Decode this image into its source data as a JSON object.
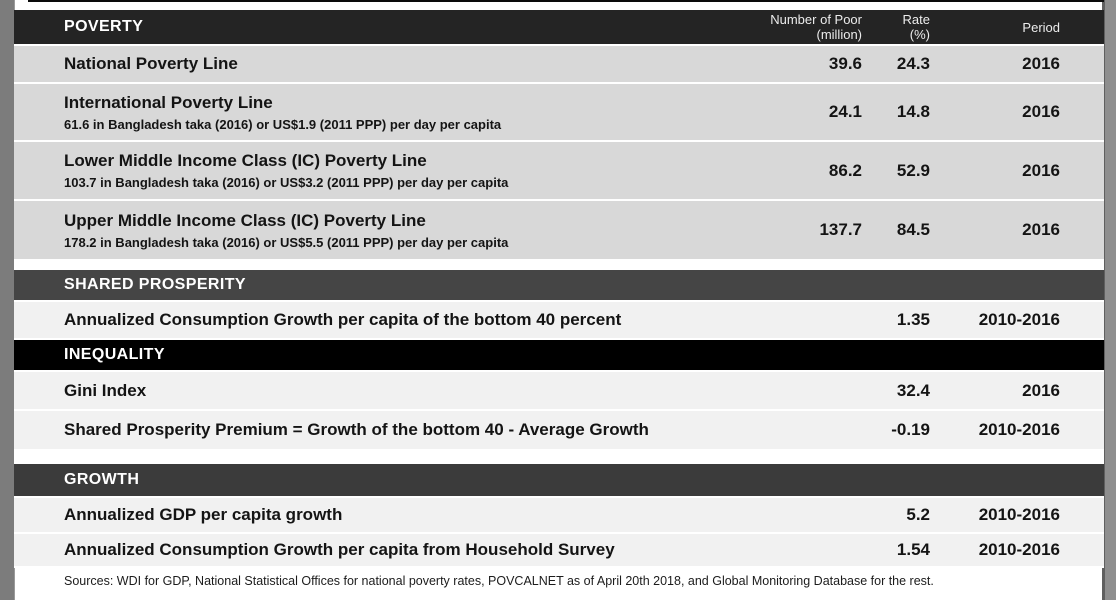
{
  "table": {
    "columns": {
      "number_line1": "Number of Poor",
      "number_line2": "(million)",
      "rate_line1": "Rate",
      "rate_line2": "(%)",
      "period": "Period"
    },
    "sections": [
      {
        "title": "POVERTY",
        "rows": [
          {
            "label": "National Poverty Line",
            "sub": "",
            "number": "39.6",
            "rate": "24.3",
            "period": "2016"
          },
          {
            "label": "International Poverty Line",
            "sub": "61.6 in Bangladesh taka (2016) or US$1.9 (2011 PPP) per day per capita",
            "number": "24.1",
            "rate": "14.8",
            "period": "2016"
          },
          {
            "label": "Lower Middle Income Class (IC) Poverty Line",
            "sub": "103.7 in Bangladesh taka (2016) or US$3.2 (2011 PPP) per day per capita",
            "number": "86.2",
            "rate": "52.9",
            "period": "2016"
          },
          {
            "label": "Upper Middle Income Class (IC) Poverty Line",
            "sub": "178.2 in Bangladesh taka (2016) or US$5.5 (2011 PPP) per day per capita",
            "number": "137.7",
            "rate": "84.5",
            "period": "2016"
          }
        ]
      },
      {
        "title": "SHARED PROSPERITY",
        "rows": [
          {
            "label": "Annualized Consumption Growth per capita of the bottom 40 percent",
            "number": "",
            "rate": "1.35",
            "period": "2010-2016"
          }
        ]
      },
      {
        "title": "INEQUALITY",
        "rows": [
          {
            "label": "Gini Index",
            "number": "",
            "rate": "32.4",
            "period": "2016"
          },
          {
            "label": "Shared Prosperity Premium = Growth of the bottom 40 - Average Growth",
            "number": "",
            "rate": "-0.19",
            "period": "2010-2016"
          }
        ]
      },
      {
        "title": "GROWTH",
        "rows": [
          {
            "label": "Annualized GDP per capita growth",
            "number": "",
            "rate": "5.2",
            "period": "2010-2016"
          },
          {
            "label": "Annualized Consumption Growth per capita from Household Survey",
            "number": "",
            "rate": "1.54",
            "period": "2010-2016"
          }
        ]
      }
    ],
    "footer": "Sources: WDI for GDP, National Statistical Offices for national poverty rates, POVCALNET as of April 20th 2018, and Global Monitoring Database for the rest."
  },
  "colors": {
    "poverty_header_bg": "#242424",
    "shared_prosperity_header_bg": "#454545",
    "inequality_header_bg": "#000000",
    "growth_header_bg": "#3b3b3b",
    "poverty_row_bg": "#d8d8d8",
    "light_row_bg": "#f1f1f1",
    "header_text": "#ffffff",
    "body_text": "#141414"
  }
}
